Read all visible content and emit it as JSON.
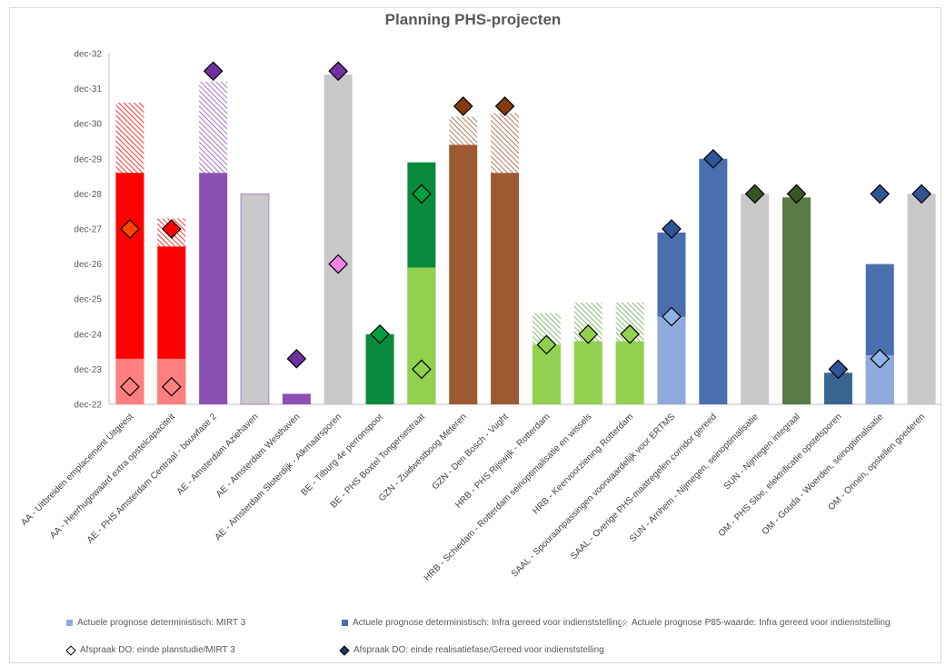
{
  "chart_data": {
    "type": "bar",
    "title": "Planning PHS-projecten",
    "y_ticks": [
      "dec-22",
      "dec-23",
      "dec-24",
      "dec-25",
      "dec-26",
      "dec-27",
      "dec-28",
      "dec-29",
      "dec-30",
      "dec-31",
      "dec-32"
    ],
    "ylim": [
      0,
      10
    ],
    "y_unit": "years since dec-22",
    "categories": [
      "AA - Uitbreiden emplacement Uitgeest",
      "AA - Heerhugowaard extra opstelcapaciteit",
      "AE - PHS Amsterdam Centraal - bouwfase 2",
      "AE - Amsterdam Aziehaven",
      "AE - Amsterdam Westhaven",
      "AE - Amsterdam Sloterdijk - Alkmaarsporen",
      "BE - Tilburg 4e perronspoor",
      "BE - PHS Boxtel Tongersestraat",
      "GZN - Zuidwestboog Meteren",
      "GZN - Den Bosch - Vught",
      "HRB - PHS Rijswijk - Rotterdam",
      "HRB - Schiedam - Rotterdam seinoptimalisatie en wissels",
      "HRB - Keervoorziening Rotterdam",
      "SAAL - Spooraanpassingen voorwaardelijk voor ERTMS",
      "SAAL - Overige PHS-maatregelen corridor gereed",
      "SUN - Arnhem - Nijmegen, seinoptimalisatie",
      "SUN - Nijmegen integraal",
      "OM - PHS Sloe, elektrificatie opstelsporen",
      "OM - Gouda - Woerden, seinoptimalisatie",
      "OM - Onnen, opstellen goederen"
    ],
    "series": [
      {
        "name": "Actuele prognose deterministisch: MIRT 3",
        "values": [
          1.3,
          1.3,
          null,
          null,
          null,
          null,
          null,
          3.9,
          null,
          null,
          1.7,
          1.8,
          1.8,
          2.5,
          null,
          null,
          null,
          null,
          1.4,
          null
        ]
      },
      {
        "name": "Actuele prognose deterministisch: Infra gereed voor indienststelling",
        "values": [
          6.6,
          4.5,
          6.6,
          6.0,
          0.3,
          9.4,
          2.0,
          6.9,
          7.4,
          6.6,
          1.7,
          1.8,
          1.8,
          4.9,
          7.0,
          6.0,
          5.9,
          0.9,
          4.0,
          6.0
        ]
      },
      {
        "name": "Actuele prognose P85-waarde: Infra gereed voor indienststelling",
        "values": [
          8.6,
          5.3,
          9.2,
          null,
          null,
          null,
          null,
          null,
          8.2,
          8.3,
          2.6,
          2.9,
          2.9,
          null,
          null,
          null,
          null,
          null,
          null,
          null
        ]
      },
      {
        "name": "Afspraak DO: einde planstudie/MIRT 3",
        "values": [
          0.5,
          0.5,
          null,
          null,
          null,
          4.0,
          null,
          1.0,
          null,
          null,
          1.7,
          2.0,
          2.0,
          2.5,
          null,
          null,
          null,
          null,
          1.3,
          null
        ]
      },
      {
        "name": "Afspraak DO: einde realisatiefase/Gereed voor indienststelling",
        "values": [
          5.0,
          5.0,
          9.5,
          null,
          1.3,
          9.5,
          2.0,
          6.0,
          8.5,
          8.5,
          null,
          null,
          null,
          5.0,
          7.0,
          6.0,
          6.0,
          1.0,
          6.0,
          6.0
        ]
      }
    ],
    "colors": {
      "main": [
        "#ff0000",
        "#ff0000",
        "#8c50b4",
        "#c8c8c8",
        "#8c50b4",
        "#c8c8c8",
        "#0a8a3c",
        "#0a8a3c",
        "#9c5a32",
        "#9c5a32",
        "#92d050",
        "#92d050",
        "#92d050",
        "#4a6fae",
        "#4a6fae",
        "#c8c8c8",
        "#5a7a46",
        "#3a6490",
        "#4a6fae",
        "#c8c8c8"
      ],
      "early": [
        "#ff7f7f",
        "#ff7f7f",
        "",
        "",
        "",
        "",
        "",
        "#92d050",
        "",
        "",
        "#92d050",
        "#92d050",
        "#92d050",
        "#8faadc",
        "",
        "",
        "",
        "",
        "#8faadc",
        ""
      ],
      "hatch": [
        "#ff0000",
        "#ff0000",
        "#8c50b4",
        "",
        "",
        "",
        "",
        "",
        "#9c5a32",
        "#9c5a32",
        "#6aa84f",
        "#6aa84f",
        "#6aa84f",
        "",
        "",
        "",
        "",
        "",
        "",
        ""
      ],
      "diamond_planstudie": [
        "#ff7f7f",
        "#ff7f7f",
        "",
        "",
        "",
        "#ee82ee",
        "",
        "#92d050",
        "",
        "",
        "#92d050",
        "#92d050",
        "#92d050",
        "#8fb4e3",
        "",
        "",
        "",
        "",
        "#8fb4e3",
        ""
      ],
      "diamond_realisatie": [
        "#ff4500",
        "#ff0000",
        "#7030a0",
        "",
        "#7030a0",
        "#7030a0",
        "#00a040",
        "#00a040",
        "#843c0c",
        "#843c0c",
        "",
        "",
        "",
        "#2f5597",
        "#2f5597",
        "#375623",
        "#375623",
        "#2f5597",
        "#2f5597",
        "#2f5597"
      ]
    },
    "legend_placement": "bottom",
    "grid": false
  }
}
